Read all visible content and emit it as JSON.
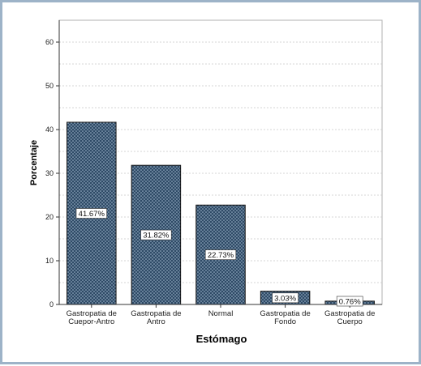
{
  "chart_data": {
    "type": "bar",
    "xlabel": "Estómago",
    "ylabel": "Porcentaje",
    "ylim": [
      0,
      65
    ],
    "yticks": [
      "0",
      "10",
      "20",
      "30",
      "40",
      "50",
      "60"
    ],
    "categories": [
      [
        "Gastropatia de",
        "Cuepor-Antro"
      ],
      [
        "Gastropatia de",
        "Antro"
      ],
      [
        "Normal"
      ],
      [
        "Gastropatia de",
        "Fondo"
      ],
      [
        "Gastropatia de",
        "Cuerpo"
      ]
    ],
    "values": [
      41.67,
      31.82,
      22.73,
      3.03,
      0.76
    ],
    "data_labels": [
      "41.67%",
      "31.82%",
      "22.73%",
      "3.03%",
      "0.76%"
    ],
    "grid": true,
    "colors": {
      "bar_fill": "#2e4a66",
      "bar_pattern_dot": "#a9bfd4",
      "frame_border": "#9db3c8",
      "grid": "#c8c8c8"
    }
  }
}
